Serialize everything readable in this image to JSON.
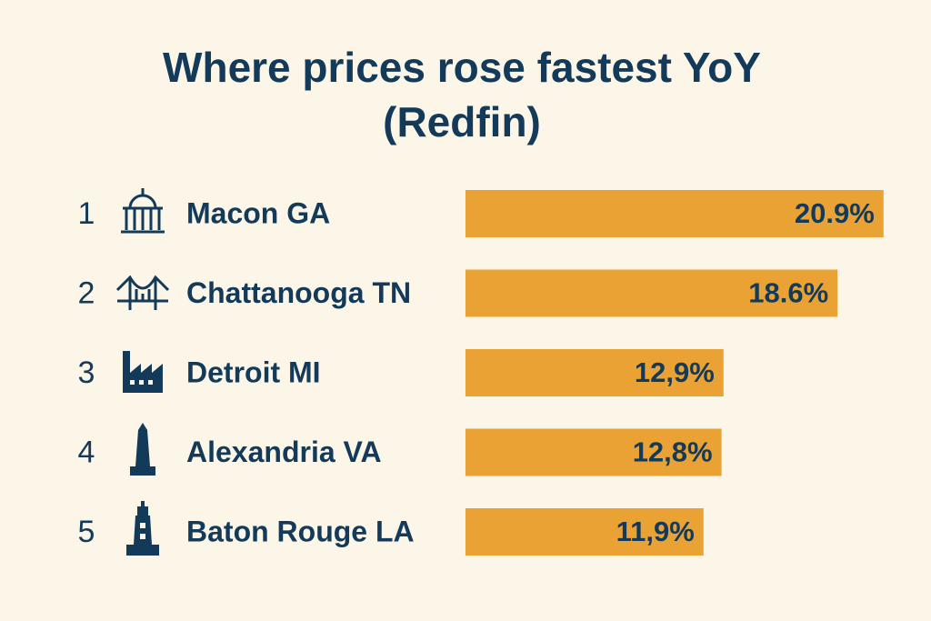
{
  "chart_data": {
    "type": "bar",
    "orientation": "horizontal",
    "title": "Where prices rose fastest YoY",
    "subtitle": "(Redfin)",
    "ranks": [
      1,
      2,
      3,
      4,
      5
    ],
    "categories": [
      "Macon GA",
      "Chattanooga TN",
      "Detroit MI",
      "Alexandria VA",
      "Baton Rouge LA"
    ],
    "values": [
      20.9,
      18.6,
      12.9,
      12.8,
      11.9
    ],
    "value_labels": [
      "20.9%",
      "18.6%",
      "12,9%",
      "12,8%",
      "11,9%"
    ],
    "color": "#e9a233"
  }
}
